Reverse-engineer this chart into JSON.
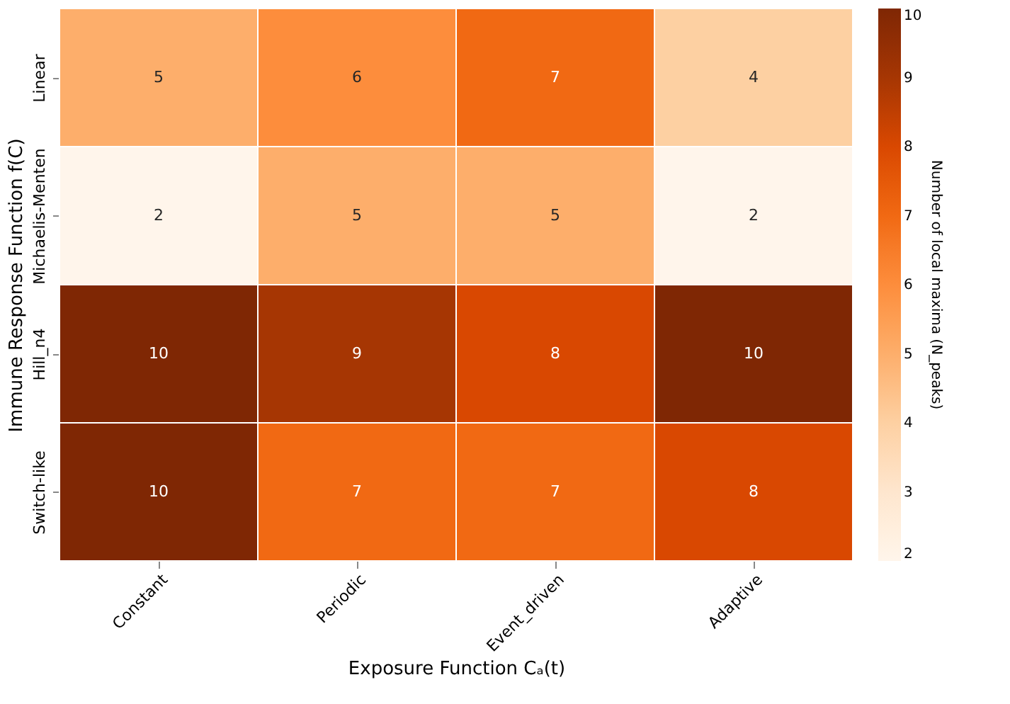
{
  "chart_data": {
    "type": "heatmap",
    "xlabel": "Exposure Function Cₐ(t)",
    "ylabel": "Immune Response Function f(C)",
    "clabel": "Number of local maxima (N_peaks)",
    "categories": [
      "Constant",
      "Periodic",
      "Event_driven",
      "Adaptive"
    ],
    "y_categories": [
      "Linear",
      "Michaelis-Menten",
      "Hill_n4",
      "Switch-like"
    ],
    "cells": [
      [
        5,
        6,
        7,
        4
      ],
      [
        2,
        5,
        5,
        2
      ],
      [
        10,
        9,
        8,
        10
      ],
      [
        10,
        7,
        7,
        8
      ]
    ],
    "clim": [
      2,
      10
    ],
    "cticks": [
      2,
      3,
      4,
      5,
      6,
      7,
      8,
      9,
      10
    ],
    "data_labels": true
  }
}
